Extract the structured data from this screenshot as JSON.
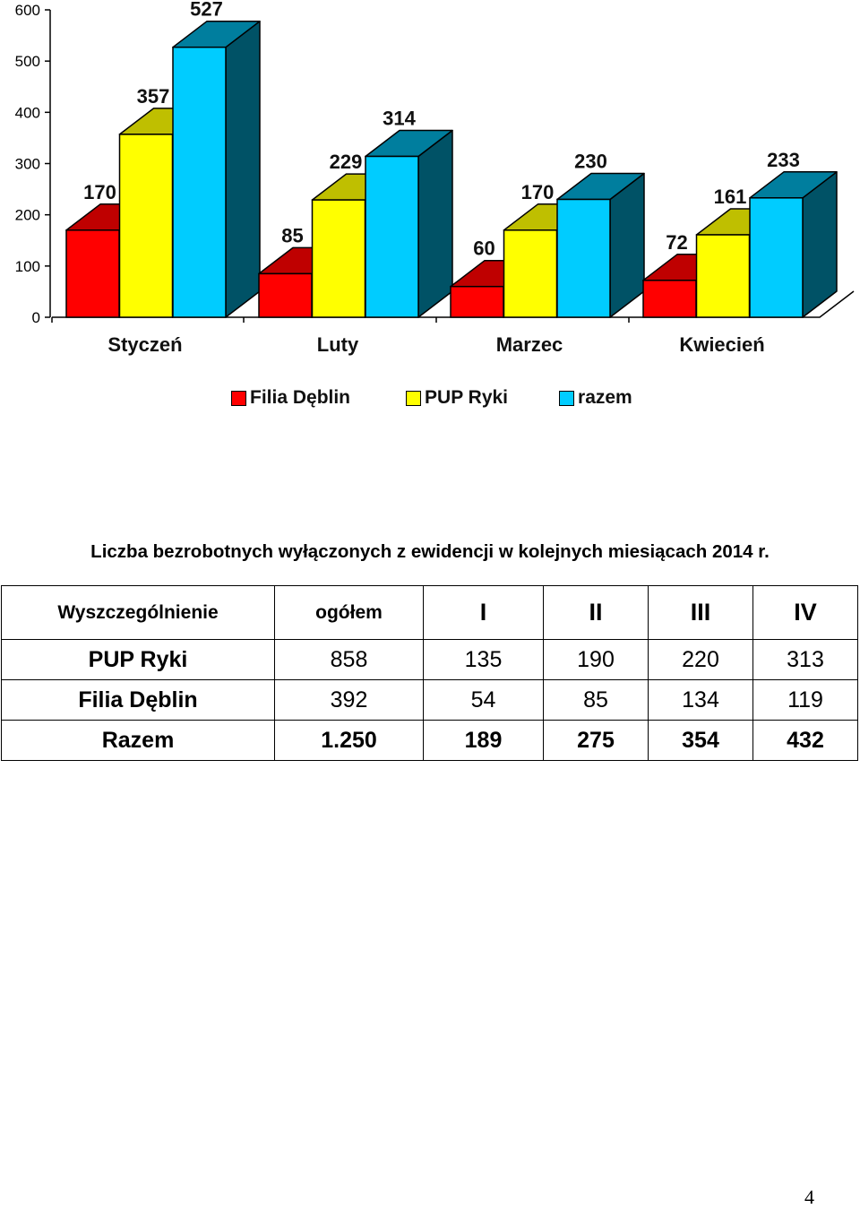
{
  "chart_data": {
    "type": "bar",
    "categories": [
      "Styczeń",
      "Luty",
      "Marzec",
      "Kwiecień"
    ],
    "series": [
      {
        "name": "Filia Dęblin",
        "color": "#ff0000",
        "values": [
          170,
          85,
          60,
          72
        ]
      },
      {
        "name": "PUP Ryki",
        "color": "#ffff00",
        "values": [
          357,
          229,
          170,
          161
        ]
      },
      {
        "name": "razem",
        "color": "#00ccff",
        "values": [
          527,
          314,
          230,
          233
        ]
      }
    ],
    "y_ticks": [
      "0",
      "100",
      "200",
      "300",
      "400",
      "500",
      "600"
    ],
    "ylim": [
      0,
      600
    ],
    "grid": false,
    "legend_position": "bottom",
    "style": "3d-bars"
  },
  "caption": "Liczba bezrobotnych wyłączonych z ewidencji w kolejnych miesiącach 2014 r.",
  "table": {
    "headers": [
      "Wyszczególnienie",
      "ogółem",
      "I",
      "II",
      "III",
      "IV"
    ],
    "rows": [
      {
        "cells": [
          "PUP Ryki",
          "858",
          "135",
          "190",
          "220",
          "313"
        ],
        "bold": false
      },
      {
        "cells": [
          "Filia Dęblin",
          "392",
          "54",
          "85",
          "134",
          "119"
        ],
        "bold": false
      },
      {
        "cells": [
          "Razem",
          "1.250",
          "189",
          "275",
          "354",
          "432"
        ],
        "bold": true
      }
    ]
  },
  "page_number": "4"
}
